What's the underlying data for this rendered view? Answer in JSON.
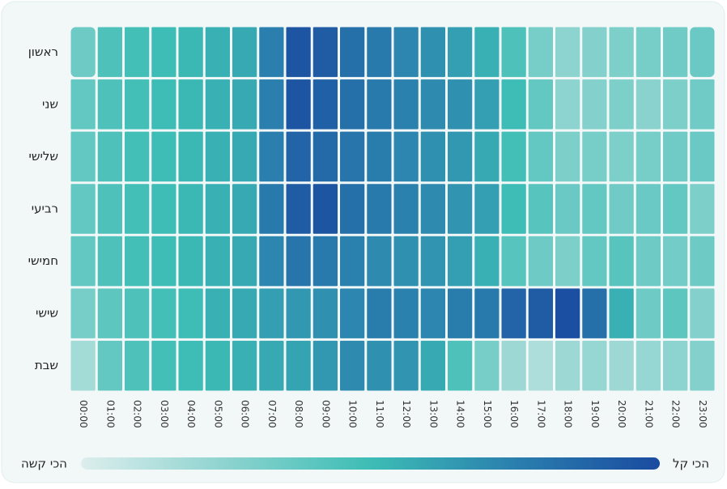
{
  "chart_data": {
    "type": "heatmap",
    "rows": [
      "ראשון",
      "שני",
      "שלישי",
      "רביעי",
      "חמישי",
      "שישי",
      "שבת"
    ],
    "categories": [
      "00:00",
      "01:00",
      "02:00",
      "03:00",
      "04:00",
      "05:00",
      "06:00",
      "07:00",
      "08:00",
      "09:00",
      "10:00",
      "11:00",
      "12:00",
      "13:00",
      "14:00",
      "15:00",
      "16:00",
      "17:00",
      "18:00",
      "19:00",
      "20:00",
      "21:00",
      "22:00",
      "23:00"
    ],
    "values": [
      [
        35,
        45,
        48,
        50,
        52,
        55,
        58,
        75,
        95,
        92,
        82,
        78,
        72,
        68,
        62,
        55,
        45,
        32,
        25,
        28,
        30,
        32,
        34,
        36
      ],
      [
        38,
        45,
        48,
        50,
        52,
        55,
        58,
        75,
        95,
        90,
        82,
        78,
        74,
        70,
        68,
        62,
        50,
        38,
        25,
        28,
        30,
        26,
        30,
        34
      ],
      [
        38,
        45,
        48,
        50,
        52,
        55,
        58,
        75,
        88,
        85,
        80,
        76,
        72,
        68,
        65,
        58,
        48,
        38,
        30,
        32,
        30,
        32,
        34,
        36
      ],
      [
        38,
        45,
        48,
        50,
        52,
        55,
        58,
        78,
        92,
        95,
        82,
        78,
        74,
        70,
        66,
        62,
        50,
        42,
        36,
        38,
        34,
        36,
        38,
        30
      ],
      [
        38,
        45,
        48,
        50,
        52,
        55,
        58,
        72,
        80,
        78,
        74,
        70,
        68,
        66,
        62,
        55,
        42,
        35,
        30,
        38,
        42,
        35,
        33,
        35
      ],
      [
        32,
        40,
        45,
        48,
        50,
        55,
        58,
        62,
        65,
        68,
        72,
        76,
        74,
        72,
        76,
        78,
        88,
        92,
        98,
        82,
        55,
        35,
        40,
        28
      ],
      [
        18,
        38,
        45,
        48,
        50,
        52,
        55,
        58,
        60,
        65,
        70,
        68,
        66,
        58,
        45,
        32,
        20,
        15,
        20,
        22,
        20,
        22,
        25,
        28
      ]
    ],
    "zlim": [
      0,
      100
    ],
    "colorscale": [
      "#dceeed",
      "#8dd3cf",
      "#3dbdb5",
      "#2a7fae",
      "#1a4ba0"
    ],
    "colorbar": {
      "min_label": "הכי קשה",
      "max_label": "הכי קל"
    }
  }
}
